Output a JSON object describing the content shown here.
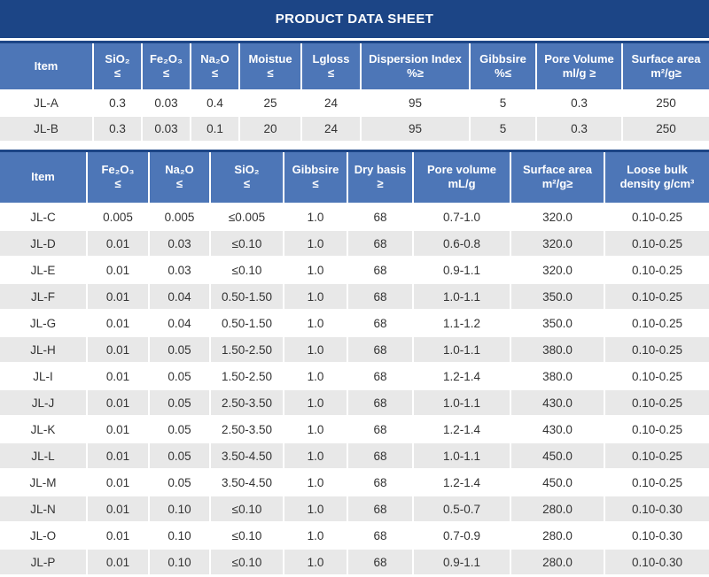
{
  "title_bar": {
    "title": "PRODUCT DATA SHEET"
  },
  "colors": {
    "navy": "#1c4586",
    "header_blue": "#4d76b7",
    "stripe_gray": "#e8e8e8",
    "body_text": "#333333"
  },
  "table1": {
    "headers": [
      "Item",
      "SiO₂\n≤",
      "Fe₂O₃\n≤",
      "Na₂O\n≤",
      "Moistue\n≤",
      "Lgloss\n≤",
      "Dispersion Index\n%≥",
      "Gibbsire\n%≤",
      "Pore Volume\nml/g ≥",
      "Surface area\nm²/g≥"
    ],
    "rows": [
      [
        "JL-A",
        "0.3",
        "0.03",
        "0.4",
        "25",
        "24",
        "95",
        "5",
        "0.3",
        "250"
      ],
      [
        "JL-B",
        "0.3",
        "0.03",
        "0.1",
        "20",
        "24",
        "95",
        "5",
        "0.3",
        "250"
      ]
    ]
  },
  "table2": {
    "headers": [
      "Item",
      "Fe₂O₃\n≤",
      "Na₂O\n≤",
      "SiO₂\n≤",
      "Gibbsire\n≤",
      "Dry basis\n≥",
      "Pore volume\nmL/g",
      "Surface area\nm²/g≥",
      "Loose bulk\ndensity g/cm³"
    ],
    "rows": [
      [
        "JL-C",
        "0.005",
        "0.005",
        "≤0.005",
        "1.0",
        "68",
        "0.7-1.0",
        "320.0",
        "0.10-0.25"
      ],
      [
        "JL-D",
        "0.01",
        "0.03",
        "≤0.10",
        "1.0",
        "68",
        "0.6-0.8",
        "320.0",
        "0.10-0.25"
      ],
      [
        "JL-E",
        "0.01",
        "0.03",
        "≤0.10",
        "1.0",
        "68",
        "0.9-1.1",
        "320.0",
        "0.10-0.25"
      ],
      [
        "JL-F",
        "0.01",
        "0.04",
        "0.50-1.50",
        "1.0",
        "68",
        "1.0-1.1",
        "350.0",
        "0.10-0.25"
      ],
      [
        "JL-G",
        "0.01",
        "0.04",
        "0.50-1.50",
        "1.0",
        "68",
        "1.1-1.2",
        "350.0",
        "0.10-0.25"
      ],
      [
        "JL-H",
        "0.01",
        "0.05",
        "1.50-2.50",
        "1.0",
        "68",
        "1.0-1.1",
        "380.0",
        "0.10-0.25"
      ],
      [
        "JL-I",
        "0.01",
        "0.05",
        "1.50-2.50",
        "1.0",
        "68",
        "1.2-1.4",
        "380.0",
        "0.10-0.25"
      ],
      [
        "JL-J",
        "0.01",
        "0.05",
        "2.50-3.50",
        "1.0",
        "68",
        "1.0-1.1",
        "430.0",
        "0.10-0.25"
      ],
      [
        "JL-K",
        "0.01",
        "0.05",
        "2.50-3.50",
        "1.0",
        "68",
        "1.2-1.4",
        "430.0",
        "0.10-0.25"
      ],
      [
        "JL-L",
        "0.01",
        "0.05",
        "3.50-4.50",
        "1.0",
        "68",
        "1.0-1.1",
        "450.0",
        "0.10-0.25"
      ],
      [
        "JL-M",
        "0.01",
        "0.05",
        "3.50-4.50",
        "1.0",
        "68",
        "1.2-1.4",
        "450.0",
        "0.10-0.25"
      ],
      [
        "JL-N",
        "0.01",
        "0.10",
        "≤0.10",
        "1.0",
        "68",
        "0.5-0.7",
        "280.0",
        "0.10-0.30"
      ],
      [
        "JL-O",
        "0.01",
        "0.10",
        "≤0.10",
        "1.0",
        "68",
        "0.7-0.9",
        "280.0",
        "0.10-0.30"
      ],
      [
        "JL-P",
        "0.01",
        "0.10",
        "≤0.10",
        "1.0",
        "68",
        "0.9-1.1",
        "280.0",
        "0.10-0.30"
      ]
    ]
  }
}
